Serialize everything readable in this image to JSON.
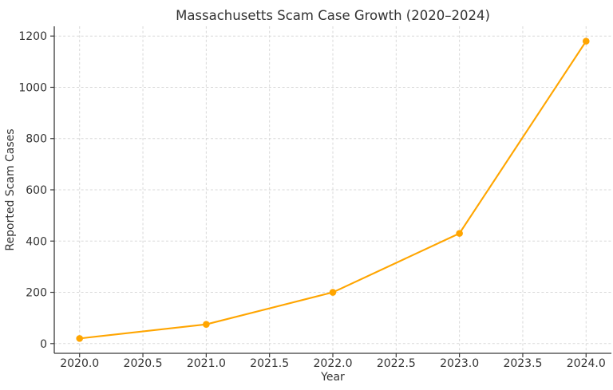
{
  "title": "Massachusetts Scam Case Growth (2020–2024)",
  "chart_data": {
    "type": "line",
    "title": "Massachusetts Scam Case Growth (2020–2024)",
    "xlabel": "Year",
    "ylabel": "Reported Scam Cases",
    "x": [
      2020,
      2021,
      2022,
      2023,
      2024
    ],
    "series": [
      {
        "name": "Reported Scam Cases",
        "values": [
          20,
          75,
          200,
          430,
          1180
        ]
      }
    ],
    "x_ticks": {
      "values": [
        2020.0,
        2020.5,
        2021.0,
        2021.5,
        2022.0,
        2022.5,
        2023.0,
        2023.5,
        2024.0
      ],
      "labels": [
        "2020.0",
        "2020.5",
        "2021.0",
        "2021.5",
        "2022.0",
        "2022.5",
        "2023.0",
        "2023.5",
        "2024.0"
      ]
    },
    "y_ticks": {
      "values": [
        0,
        200,
        400,
        600,
        800,
        1000,
        1200
      ],
      "labels": [
        "0",
        "200",
        "400",
        "600",
        "800",
        "1000",
        "1200"
      ]
    },
    "xlim": [
      2019.8,
      2024.2
    ],
    "ylim": [
      -38,
      1238
    ],
    "grid": "dashed",
    "legend": "none",
    "marker": "circle",
    "line_color": "#FFA500"
  },
  "colors": {
    "line": "#FFA500",
    "marker": "#FFA500",
    "grid": "#d8d8d8",
    "spine": "#3a3a3a",
    "text": "#333333",
    "background": "#ffffff"
  }
}
